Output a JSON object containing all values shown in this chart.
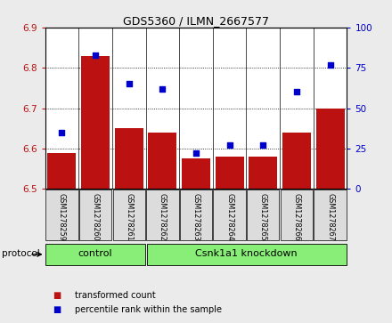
{
  "title": "GDS5360 / ILMN_2667577",
  "samples": [
    "GSM1278259",
    "GSM1278260",
    "GSM1278261",
    "GSM1278262",
    "GSM1278263",
    "GSM1278264",
    "GSM1278265",
    "GSM1278266",
    "GSM1278267"
  ],
  "bar_values": [
    6.59,
    6.83,
    6.65,
    6.64,
    6.575,
    6.58,
    6.58,
    6.64,
    6.7
  ],
  "scatter_values": [
    35,
    83,
    65,
    62,
    22,
    27,
    27,
    60,
    77
  ],
  "ylim_left": [
    6.5,
    6.9
  ],
  "ylim_right": [
    0,
    100
  ],
  "yticks_left": [
    6.5,
    6.6,
    6.7,
    6.8,
    6.9
  ],
  "yticks_right": [
    0,
    25,
    50,
    75,
    100
  ],
  "bar_color": "#BB1111",
  "scatter_color": "#0000CC",
  "background_color": "#EBEBEB",
  "plot_bg": "#FFFFFF",
  "control_label": "control",
  "knockdown_label": "Csnk1a1 knockdown",
  "protocol_label": "protocol",
  "legend_bar_label": "transformed count",
  "legend_scatter_label": "percentile rank within the sample",
  "group_color": "#88EE77",
  "n_control": 3,
  "n_knockdown": 6
}
